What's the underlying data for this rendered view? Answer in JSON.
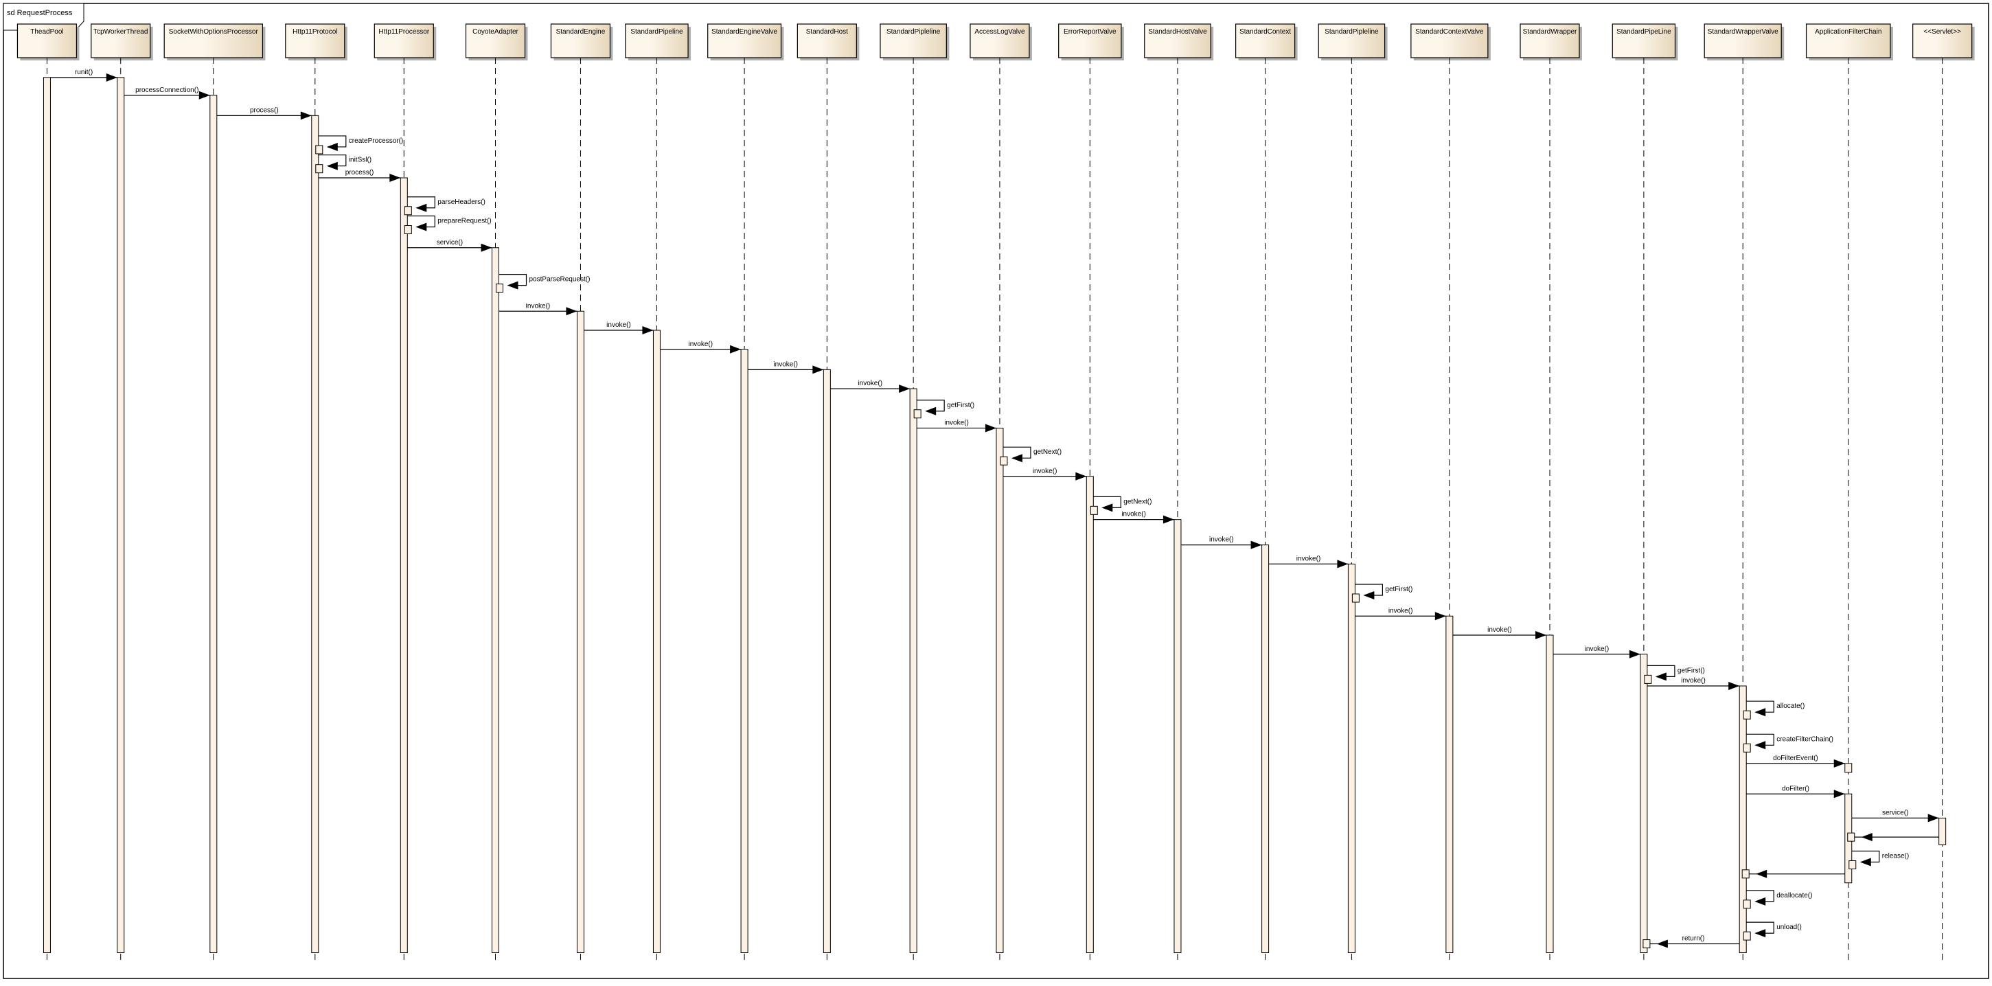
{
  "diagram": {
    "frame_title": "sd RequestProcess",
    "colors": {
      "box_fill_light": "#fdf6ea",
      "box_fill_dark": "#e6d6bb",
      "activation_fill": "#fbf1e4",
      "line": "#000000",
      "shadow": "#b0b0b0"
    },
    "lifelines": [
      "TheadPool",
      "TcpWorkerThread",
      "SocketWithOptionsProcessor",
      "Http11Protocol",
      "Http11Processor",
      "CoyoteAdapter",
      "StandardEngine",
      "StandardPipeline",
      "StandardEngineValve",
      "StandardHost",
      "StandardPipleline",
      "AccessLogValve",
      "ErrorReportValve",
      "StandardHostValve",
      "StandardContext",
      "StandardPipleline",
      "StandardContextValve",
      "StandardWrapper",
      "StandardPipeLine",
      "StandardWrapperValve",
      "ApplicationFilterChain",
      "<<Servlet>>"
    ],
    "messages": [
      {
        "from": 0,
        "to": 1,
        "label": "runit()"
      },
      {
        "from": 1,
        "to": 2,
        "label": "processConnection()"
      },
      {
        "from": 2,
        "to": 3,
        "label": "process()"
      },
      {
        "from": 3,
        "to": 3,
        "label": "createProcessor()"
      },
      {
        "from": 3,
        "to": 3,
        "label": "initSsl()"
      },
      {
        "from": 3,
        "to": 4,
        "label": "process()"
      },
      {
        "from": 4,
        "to": 4,
        "label": "parseHeaders()"
      },
      {
        "from": 4,
        "to": 4,
        "label": "prepareRequest()"
      },
      {
        "from": 4,
        "to": 5,
        "label": "service()"
      },
      {
        "from": 5,
        "to": 5,
        "label": "postParseRequest()"
      },
      {
        "from": 5,
        "to": 6,
        "label": "invoke()"
      },
      {
        "from": 6,
        "to": 7,
        "label": "invoke()"
      },
      {
        "from": 7,
        "to": 8,
        "label": "invoke()"
      },
      {
        "from": 8,
        "to": 9,
        "label": "invoke()"
      },
      {
        "from": 9,
        "to": 10,
        "label": "invoke()"
      },
      {
        "from": 10,
        "to": 10,
        "label": "getFirst()"
      },
      {
        "from": 10,
        "to": 11,
        "label": "invoke()"
      },
      {
        "from": 11,
        "to": 11,
        "label": "getNext()"
      },
      {
        "from": 11,
        "to": 12,
        "label": "invoke()"
      },
      {
        "from": 12,
        "to": 12,
        "label": "getNext()"
      },
      {
        "from": 12,
        "to": 13,
        "label": "invoke()"
      },
      {
        "from": 13,
        "to": 14,
        "label": "invoke()"
      },
      {
        "from": 14,
        "to": 15,
        "label": "invoke()"
      },
      {
        "from": 15,
        "to": 15,
        "label": "getFirst()"
      },
      {
        "from": 15,
        "to": 16,
        "label": "invoke()"
      },
      {
        "from": 16,
        "to": 17,
        "label": "invoke()"
      },
      {
        "from": 17,
        "to": 18,
        "label": "invoke()"
      },
      {
        "from": 18,
        "to": 18,
        "label": "getFirst()"
      },
      {
        "from": 18,
        "to": 19,
        "label": "invoke()"
      },
      {
        "from": 19,
        "to": 19,
        "label": "allocate()"
      },
      {
        "from": 19,
        "to": 19,
        "label": "createFilterChain()"
      },
      {
        "from": 19,
        "to": 20,
        "label": "doFilterEvent()"
      },
      {
        "from": 19,
        "to": 20,
        "label": "doFilter()"
      },
      {
        "from": 20,
        "to": 21,
        "label": "service()"
      },
      {
        "from": 21,
        "to": 20,
        "label": ""
      },
      {
        "from": 20,
        "to": 20,
        "label": "release()"
      },
      {
        "from": 20,
        "to": 19,
        "label": ""
      },
      {
        "from": 19,
        "to": 19,
        "label": "deallocate()"
      },
      {
        "from": 19,
        "to": 19,
        "label": "unload()"
      },
      {
        "from": 19,
        "to": 18,
        "label": "return()"
      }
    ]
  }
}
